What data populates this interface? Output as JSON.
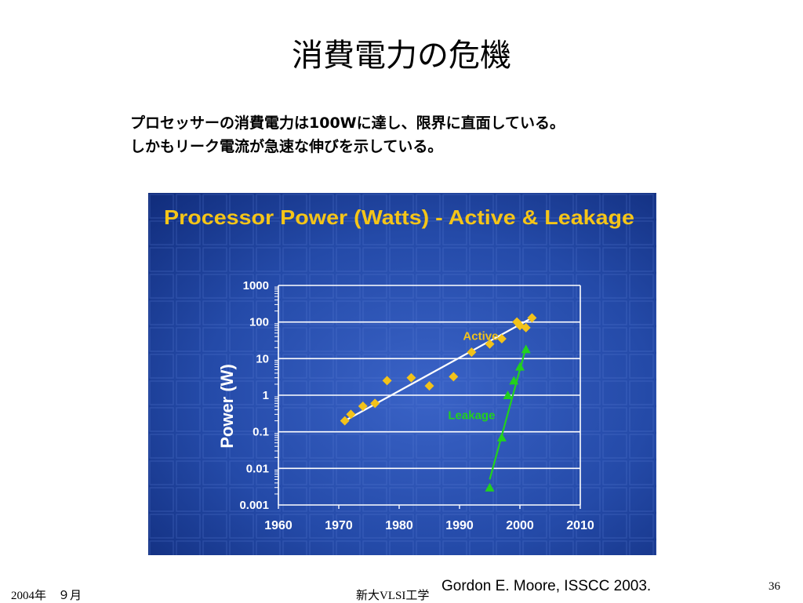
{
  "slide": {
    "title": "消費電力の危機",
    "subtitle_line1": "プロセッサーの消費電力は100Wに達し、限界に直面している。",
    "subtitle_line2": "しかもリーク電流が急速な伸びを示している。",
    "source": "Gordon E. Moore, ISSCC 2003.",
    "footer_date": "2004年　９月",
    "footer_course": "新大VLSI工学",
    "page_number": "36"
  },
  "chart_data": {
    "type": "scatter",
    "title": "Processor Power (Watts) - Active & Leakage",
    "xlabel": "",
    "ylabel": "Power (W)",
    "xlim": [
      1960,
      2010
    ],
    "ylim": [
      0.001,
      1000
    ],
    "yscale": "log",
    "x_ticks": [
      "1960",
      "1970",
      "1980",
      "1990",
      "2000",
      "2010"
    ],
    "y_ticks": [
      "0.001",
      "0.01",
      "0.1",
      "1",
      "10",
      "100",
      "1000"
    ],
    "grid": true,
    "colors": {
      "background": "#1f3d9c",
      "title": "#f5c518",
      "active": "#f2c21a",
      "leakage": "#22d11e",
      "trend": "#ffffff",
      "grid": "#ffffff",
      "axis_text": "#ffffff"
    },
    "series": [
      {
        "name": "Active",
        "marker": "diamond",
        "points": [
          [
            1971,
            0.2
          ],
          [
            1972,
            0.3
          ],
          [
            1974,
            0.5
          ],
          [
            1976,
            0.6
          ],
          [
            1978,
            2.5
          ],
          [
            1982,
            3.0
          ],
          [
            1985,
            1.8
          ],
          [
            1989,
            3.2
          ],
          [
            1992,
            15
          ],
          [
            1995,
            25
          ],
          [
            1997,
            35
          ],
          [
            1999.5,
            100
          ],
          [
            2000,
            80
          ],
          [
            2001,
            70
          ],
          [
            2002,
            130
          ]
        ],
        "trend": [
          [
            1971,
            0.2
          ],
          [
            2002,
            130
          ]
        ]
      },
      {
        "name": "Leakage",
        "marker": "triangle",
        "points": [
          [
            1995,
            0.003
          ],
          [
            1997,
            0.07
          ],
          [
            1998,
            1.0
          ],
          [
            1999,
            2.5
          ],
          [
            2000,
            6
          ],
          [
            2001,
            18
          ]
        ],
        "trend": [
          [
            1995,
            0.005
          ],
          [
            2001,
            20
          ]
        ]
      }
    ]
  }
}
